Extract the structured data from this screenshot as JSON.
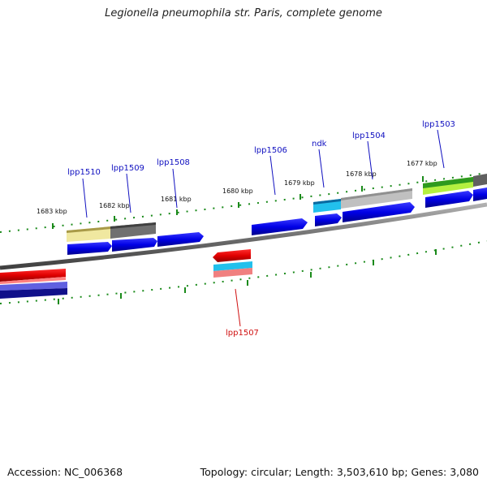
{
  "title": "Legionella pneumophila str. Paris, complete genome",
  "footer": {
    "accession": "Accession: NC_006368",
    "summary": "Topology: circular; Length: 3,503,610 bp; Genes: 3,080"
  },
  "colors": {
    "forward_label": "#1010c0",
    "reverse_label": "#d01010",
    "tick": "#1a8a1a",
    "backbone": "#808080"
  },
  "kbp_labels": [
    {
      "text": "1683 kbp"
    },
    {
      "text": "1682 kbp"
    },
    {
      "text": "1681 kbp"
    },
    {
      "text": "1680 kbp"
    },
    {
      "text": "1679 kbp"
    },
    {
      "text": "1678 kbp"
    },
    {
      "text": "1677 kbp"
    }
  ],
  "gene_labels": [
    {
      "text": "lpp1510",
      "strand": "forward"
    },
    {
      "text": "lpp1509",
      "strand": "forward"
    },
    {
      "text": "lpp1508",
      "strand": "forward"
    },
    {
      "text": "lpp1506",
      "strand": "forward"
    },
    {
      "text": "ndk",
      "strand": "forward"
    },
    {
      "text": "lpp1504",
      "strand": "forward"
    },
    {
      "text": "lpp1503",
      "strand": "forward"
    },
    {
      "text": "lpp1507",
      "strand": "reverse"
    }
  ]
}
